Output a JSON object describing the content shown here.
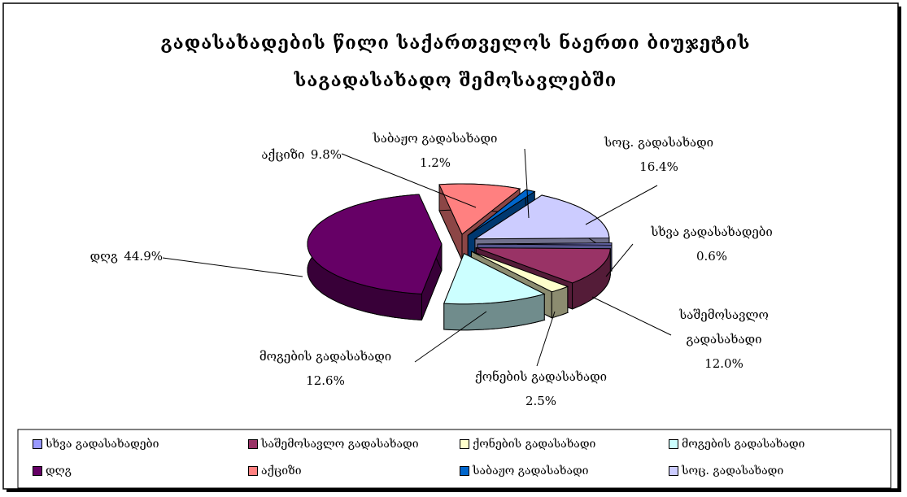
{
  "chart_data": {
    "type": "pie3d",
    "title": "გადასახადების წილი საქართველოს ნაერთი ბიუჯეტის საგადასახადო შემოსავლებში",
    "categories": [
      "სხვა გადასახადები",
      "საშემოსავლო გადასახადი",
      "ქონების გადასახადი",
      "მოგების გადასახადი",
      "დღგ",
      "აქციზი",
      "საბაჟო გადასახადი",
      "სოც. გადასახადი"
    ],
    "values": [
      0.6,
      12.0,
      2.5,
      12.6,
      44.9,
      9.8,
      1.2,
      16.4
    ],
    "value_labels": [
      "0.6%",
      "12.0%",
      "2.5%",
      "12.6%",
      "44.9%",
      "9.8%",
      "1.2%",
      "16.4%"
    ],
    "colors": [
      "#9999ff",
      "#993366",
      "#ffffcc",
      "#ccffff",
      "#660066",
      "#ff8080",
      "#0066cc",
      "#ccccff"
    ],
    "legend": "bottom"
  }
}
